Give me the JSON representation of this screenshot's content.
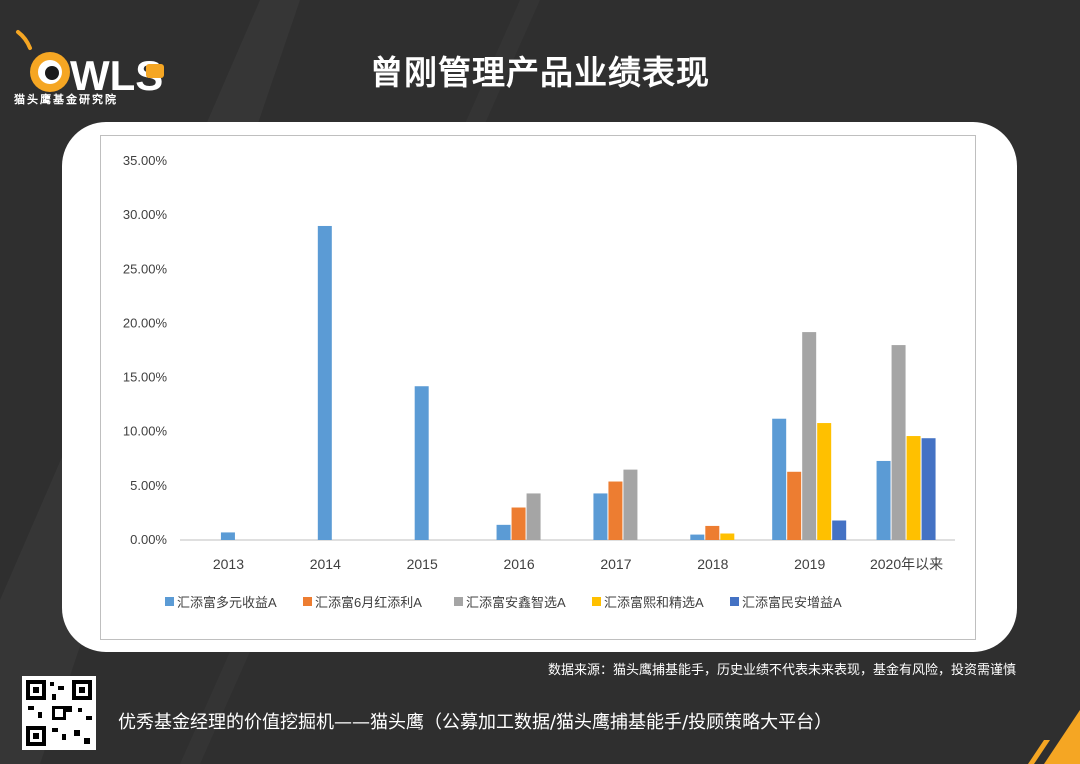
{
  "brand": {
    "logo_text": "OWLS",
    "logo_sub": "猫头鹰基金研究院"
  },
  "page_title": "曾刚管理产品业绩表现",
  "source_note": "数据来源：猫头鹰捕基能手，历史业绩不代表未来表现，基金有风险，投资需谨慎",
  "footer_text": "优秀基金经理的价值挖掘机——猫头鹰（公募加工数据/猫头鹰捕基能手/投顾策略大平台）",
  "colors": {
    "accent": "#f5a623",
    "background": "#2f2f2f"
  },
  "chart_data": {
    "type": "bar",
    "title": "",
    "xlabel": "",
    "ylabel": "",
    "categories": [
      "2013",
      "2014",
      "2015",
      "2016",
      "2017",
      "2018",
      "2019",
      "2020年以来"
    ],
    "ylim": [
      0,
      35
    ],
    "yticks": [
      "0.00%",
      "5.00%",
      "10.00%",
      "15.00%",
      "20.00%",
      "25.00%",
      "30.00%",
      "35.00%"
    ],
    "grid": false,
    "legend_position": "bottom",
    "series": [
      {
        "name": "汇添富多元收益A",
        "color": "#5b9bd5",
        "values": [
          0.7,
          29.0,
          14.2,
          1.4,
          4.3,
          0.5,
          11.2,
          7.3
        ]
      },
      {
        "name": "汇添富6月红添利A",
        "color": "#ed7d31",
        "values": [
          null,
          null,
          null,
          3.0,
          5.4,
          1.3,
          6.3,
          null
        ]
      },
      {
        "name": "汇添富安鑫智选A",
        "color": "#a5a5a5",
        "values": [
          null,
          null,
          null,
          4.3,
          6.5,
          null,
          19.2,
          18.0
        ]
      },
      {
        "name": "汇添富熙和精选A",
        "color": "#ffc000",
        "values": [
          null,
          null,
          null,
          null,
          null,
          0.6,
          10.8,
          9.6
        ]
      },
      {
        "name": "汇添富民安增益A",
        "color": "#4472c4",
        "values": [
          null,
          null,
          null,
          null,
          null,
          null,
          1.8,
          9.4
        ]
      }
    ]
  }
}
